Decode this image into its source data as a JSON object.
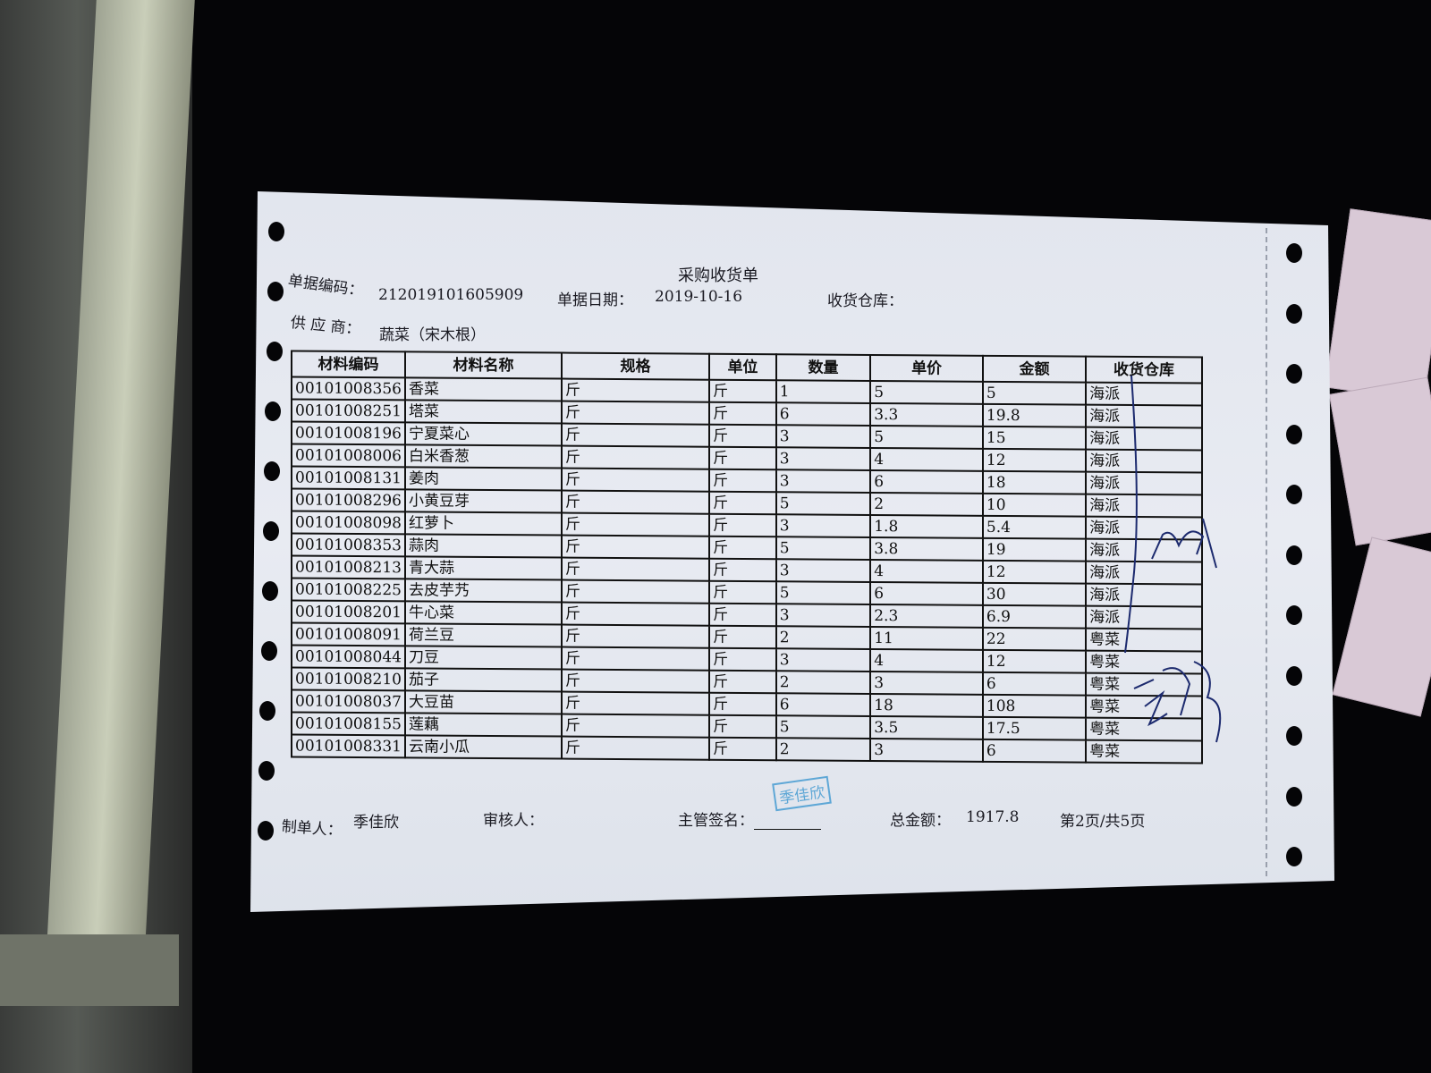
{
  "document": {
    "title": "采购收货单",
    "doc_no_label": "单据编码：",
    "doc_no": "212019101605909",
    "date_label": "单据日期：",
    "date": "2019-10-16",
    "warehouse_label": "收货仓库：",
    "supplier_label": "供 应 商：",
    "supplier": "蔬菜（宋木根）"
  },
  "table": {
    "headers": [
      "材料编码",
      "材料名称",
      "规格",
      "单位",
      "数量",
      "单价",
      "金额",
      "收货仓库"
    ],
    "rows": [
      [
        "00101008356",
        "香菜",
        "斤",
        "斤",
        "1",
        "5",
        "5",
        "海派"
      ],
      [
        "00101008251",
        "塔菜",
        "斤",
        "斤",
        "6",
        "3.3",
        "19.8",
        "海派"
      ],
      [
        "00101008196",
        "宁夏菜心",
        "斤",
        "斤",
        "3",
        "5",
        "15",
        "海派"
      ],
      [
        "00101008006",
        "白米香葱",
        "斤",
        "斤",
        "3",
        "4",
        "12",
        "海派"
      ],
      [
        "00101008131",
        "姜肉",
        "斤",
        "斤",
        "3",
        "6",
        "18",
        "海派"
      ],
      [
        "00101008296",
        "小黄豆芽",
        "斤",
        "斤",
        "5",
        "2",
        "10",
        "海派"
      ],
      [
        "00101008098",
        "红萝卜",
        "斤",
        "斤",
        "3",
        "1.8",
        "5.4",
        "海派"
      ],
      [
        "00101008353",
        "蒜肉",
        "斤",
        "斤",
        "5",
        "3.8",
        "19",
        "海派"
      ],
      [
        "00101008213",
        "青大蒜",
        "斤",
        "斤",
        "3",
        "4",
        "12",
        "海派"
      ],
      [
        "00101008225",
        "去皮芋艿",
        "斤",
        "斤",
        "5",
        "6",
        "30",
        "海派"
      ],
      [
        "00101008201",
        "牛心菜",
        "斤",
        "斤",
        "3",
        "2.3",
        "6.9",
        "海派"
      ],
      [
        "00101008091",
        "荷兰豆",
        "斤",
        "斤",
        "2",
        "11",
        "22",
        "粤菜"
      ],
      [
        "00101008044",
        "刀豆",
        "斤",
        "斤",
        "3",
        "4",
        "12",
        "粤菜"
      ],
      [
        "00101008210",
        "茄子",
        "斤",
        "斤",
        "2",
        "3",
        "6",
        "粤菜"
      ],
      [
        "00101008037",
        "大豆苗",
        "斤",
        "斤",
        "6",
        "18",
        "108",
        "粤菜"
      ],
      [
        "00101008155",
        "莲藕",
        "斤",
        "斤",
        "5",
        "3.5",
        "17.5",
        "粤菜"
      ],
      [
        "00101008331",
        "云南小瓜",
        "斤",
        "斤",
        "2",
        "3",
        "6",
        "粤菜"
      ]
    ]
  },
  "footer": {
    "maker_label": "制单人：",
    "maker": "季佳欣",
    "reviewer_label": "审核人：",
    "supervisor_label": "主管签名：",
    "stamp": "季佳欣",
    "total_label": "总金额：",
    "total": "1917.8",
    "page": "第2页/共5页"
  },
  "colors": {
    "stamp": "#5ea7d6",
    "ink": "#1c2a6e"
  }
}
